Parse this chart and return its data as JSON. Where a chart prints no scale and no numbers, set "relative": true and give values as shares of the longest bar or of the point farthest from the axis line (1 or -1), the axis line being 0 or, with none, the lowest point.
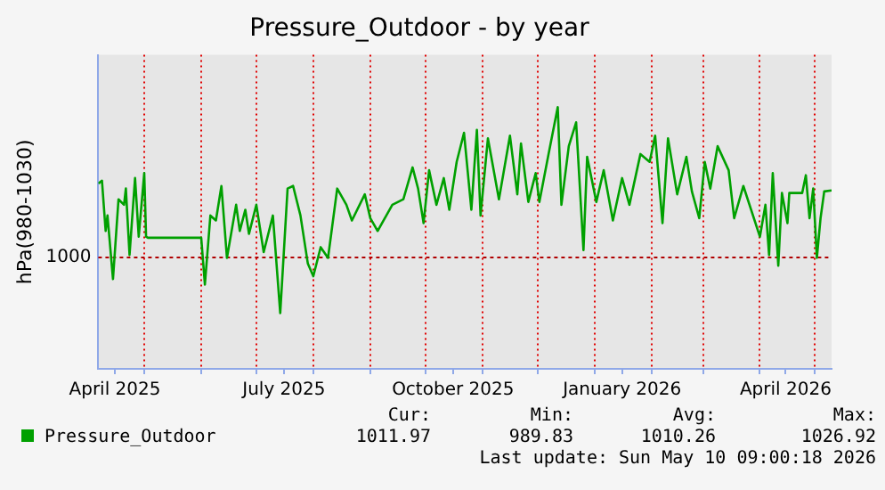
{
  "chart_data": {
    "type": "line",
    "title": "Pressure_Outdoor - by year",
    "ylabel": "hPa(980-1030)",
    "xlim": [
      "2025-04-06",
      "2026-05-10"
    ],
    "xticks": [
      {
        "value": "2025-04-15",
        "label": "April 2025"
      },
      {
        "value": "2025-05-01",
        "label": null
      },
      {
        "value": "2025-06-01",
        "label": null
      },
      {
        "value": "2025-07-01",
        "label": null
      },
      {
        "value": "2025-07-16",
        "label": "July 2025"
      },
      {
        "value": "2025-08-01",
        "label": null
      },
      {
        "value": "2025-09-01",
        "label": null
      },
      {
        "value": "2025-10-01",
        "label": null
      },
      {
        "value": "2025-10-16",
        "label": "October 2025"
      },
      {
        "value": "2025-11-01",
        "label": null
      },
      {
        "value": "2025-12-01",
        "label": null
      },
      {
        "value": "2026-01-01",
        "label": null
      },
      {
        "value": "2026-01-16",
        "label": "January 2026"
      },
      {
        "value": "2026-02-01",
        "label": null
      },
      {
        "value": "2026-03-01",
        "label": null
      },
      {
        "value": "2026-04-01",
        "label": null
      },
      {
        "value": "2026-04-15",
        "label": "April 2026"
      },
      {
        "value": "2026-05-01",
        "label": null
      }
    ],
    "relative": true,
    "ref_lines": [
      {
        "axis": "y",
        "value": 0.426,
        "color": "#b00000",
        "line_style": "dotted"
      }
    ],
    "grid": "x",
    "legend": "bottom",
    "marker": "none",
    "line_style": "solid",
    "series": [
      {
        "name": "Pressure_Outdoor",
        "color": "#00a000",
        "x": [
          "2025-04-06",
          "2025-04-08",
          "2025-04-10",
          "2025-04-11",
          "2025-04-14",
          "2025-04-17",
          "2025-04-20",
          "2025-04-21",
          "2025-04-23",
          "2025-04-26",
          "2025-04-28",
          "2025-05-01",
          "2025-05-02",
          "2025-05-03",
          "2025-06-01",
          "2025-06-03",
          "2025-06-06",
          "2025-06-09",
          "2025-06-12",
          "2025-06-15",
          "2025-06-20",
          "2025-06-22",
          "2025-06-25",
          "2025-06-27",
          "2025-07-01",
          "2025-07-05",
          "2025-07-10",
          "2025-07-14",
          "2025-07-18",
          "2025-07-21",
          "2025-07-25",
          "2025-07-29",
          "2025-08-01",
          "2025-08-05",
          "2025-08-09",
          "2025-08-14",
          "2025-08-19",
          "2025-08-22",
          "2025-08-29",
          "2025-09-01",
          "2025-09-05",
          "2025-09-13",
          "2025-09-19",
          "2025-09-24",
          "2025-09-27",
          "2025-09-30",
          "2025-10-03",
          "2025-10-07",
          "2025-10-11",
          "2025-10-14",
          "2025-10-18",
          "2025-10-22",
          "2025-10-26",
          "2025-10-29",
          "2025-10-31",
          "2025-11-04",
          "2025-11-10",
          "2025-11-16",
          "2025-11-20",
          "2025-11-22",
          "2025-11-26",
          "2025-11-30",
          "2025-12-02",
          "2025-12-07",
          "2025-12-12",
          "2025-12-14",
          "2025-12-18",
          "2025-12-22",
          "2025-12-26",
          "2025-12-28",
          "2026-01-02",
          "2026-01-06",
          "2026-01-11",
          "2026-01-16",
          "2026-01-20",
          "2026-01-26",
          "2026-01-31",
          "2026-02-03",
          "2026-02-07",
          "2026-02-10",
          "2026-02-15",
          "2026-02-20",
          "2026-02-23",
          "2026-02-27",
          "2026-03-02",
          "2026-03-05",
          "2026-03-09",
          "2026-03-15",
          "2026-03-18",
          "2026-03-23",
          "2026-04-01",
          "2026-04-04",
          "2026-04-06",
          "2026-04-08",
          "2026-04-11",
          "2026-04-13",
          "2026-04-16",
          "2026-04-17",
          "2026-04-24",
          "2026-04-26",
          "2026-04-28",
          "2026-04-30",
          "2026-05-02",
          "2026-05-04",
          "2026-05-06",
          "2026-05-10"
        ],
        "values": [
          0.708,
          0.719,
          0.527,
          0.586,
          0.343,
          0.648,
          0.627,
          0.689,
          0.435,
          0.729,
          0.505,
          0.748,
          0.505,
          0.501,
          0.501,
          0.322,
          0.586,
          0.567,
          0.699,
          0.424,
          0.627,
          0.527,
          0.608,
          0.516,
          0.627,
          0.446,
          0.586,
          0.213,
          0.689,
          0.699,
          0.586,
          0.403,
          0.354,
          0.465,
          0.424,
          0.689,
          0.627,
          0.567,
          0.667,
          0.576,
          0.527,
          0.627,
          0.648,
          0.77,
          0.689,
          0.557,
          0.759,
          0.627,
          0.729,
          0.608,
          0.791,
          0.902,
          0.608,
          0.913,
          0.586,
          0.881,
          0.648,
          0.891,
          0.667,
          0.861,
          0.638,
          0.748,
          0.638,
          0.821,
          1,
          0.627,
          0.851,
          0.942,
          0.454,
          0.81,
          0.638,
          0.759,
          0.567,
          0.729,
          0.627,
          0.821,
          0.791,
          0.891,
          0.557,
          0.881,
          0.667,
          0.81,
          0.678,
          0.576,
          0.791,
          0.689,
          0.851,
          0.759,
          0.576,
          0.699,
          0.505,
          0.627,
          0.435,
          0.748,
          0.394,
          0.672,
          0.557,
          0.672,
          0.672,
          0.74,
          0.576,
          0.689,
          0.424,
          0.576,
          0.678,
          0.682
        ]
      }
    ],
    "annotations": [
      "1000",
      "Cur:",
      "Min:",
      "Avg:",
      "Max:",
      "1011.97",
      "989.83",
      "1010.26",
      "1026.92",
      "Last update: Sun May 10 09:00:18 2026"
    ]
  }
}
